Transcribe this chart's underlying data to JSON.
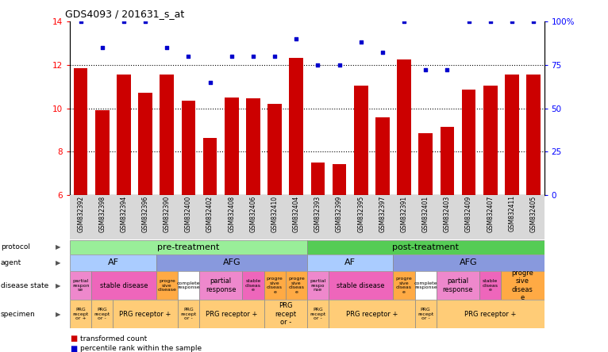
{
  "title": "GDS4093 / 201631_s_at",
  "samples": [
    "GSM832392",
    "GSM832398",
    "GSM832394",
    "GSM832396",
    "GSM832390",
    "GSM832400",
    "GSM832402",
    "GSM832408",
    "GSM832406",
    "GSM832410",
    "GSM832404",
    "GSM832393",
    "GSM832399",
    "GSM832395",
    "GSM832397",
    "GSM832391",
    "GSM832401",
    "GSM832403",
    "GSM832409",
    "GSM832407",
    "GSM832411",
    "GSM832405"
  ],
  "bar_values": [
    11.85,
    9.9,
    11.55,
    10.7,
    11.55,
    10.35,
    8.65,
    10.5,
    10.45,
    10.2,
    12.3,
    7.5,
    7.45,
    11.05,
    9.6,
    12.25,
    8.85,
    9.15,
    10.85,
    11.05,
    11.55,
    11.55
  ],
  "dot_values_pct": [
    100,
    85,
    100,
    100,
    85,
    80,
    65,
    80,
    80,
    80,
    90,
    75,
    75,
    88,
    82,
    100,
    72,
    72,
    100,
    100,
    100,
    100
  ],
  "ylim_left": [
    6,
    14
  ],
  "ylim_right": [
    0,
    100
  ],
  "yticks_left": [
    6,
    8,
    10,
    12,
    14
  ],
  "ytick_labels_right": [
    "0",
    "25",
    "50",
    "75",
    "100%"
  ],
  "yticks_right": [
    0,
    25,
    50,
    75,
    100
  ],
  "grid_yticks": [
    8,
    10,
    12
  ],
  "bar_color": "#cc0000",
  "dot_color": "#0000cc",
  "protocol_row": [
    {
      "label": "pre-treatment",
      "start": 0,
      "end": 11,
      "color": "#99ee99"
    },
    {
      "label": "post-treatment",
      "start": 11,
      "end": 22,
      "color": "#55cc55"
    }
  ],
  "agent_row": [
    {
      "label": "AF",
      "start": 0,
      "end": 4,
      "color": "#aaccff"
    },
    {
      "label": "AFG",
      "start": 4,
      "end": 11,
      "color": "#8899dd"
    },
    {
      "label": "AF",
      "start": 11,
      "end": 15,
      "color": "#aaccff"
    },
    {
      "label": "AFG",
      "start": 15,
      "end": 22,
      "color": "#8899dd"
    }
  ],
  "disease_row": [
    {
      "label": "partial\nrespon\nse",
      "start": 0,
      "end": 1,
      "color": "#ee88cc"
    },
    {
      "label": "stable disease",
      "start": 1,
      "end": 4,
      "color": "#ee66bb"
    },
    {
      "label": "progre\nsive\ndisease",
      "start": 4,
      "end": 5,
      "color": "#ffaa44"
    },
    {
      "label": "complete\nresponse",
      "start": 5,
      "end": 6,
      "color": "#ffffff"
    },
    {
      "label": "partial\nresponse",
      "start": 6,
      "end": 8,
      "color": "#ee88cc"
    },
    {
      "label": "stable\ndiseas\ne",
      "start": 8,
      "end": 9,
      "color": "#ee66bb"
    },
    {
      "label": "progre\nsive\ndiseas\ne",
      "start": 9,
      "end": 10,
      "color": "#ffaa44"
    },
    {
      "label": "progre\nsive\ndiseas\ne",
      "start": 10,
      "end": 11,
      "color": "#ffaa44"
    },
    {
      "label": "partial\nrespo\nnse",
      "start": 11,
      "end": 12,
      "color": "#ee88cc"
    },
    {
      "label": "stable disease",
      "start": 12,
      "end": 15,
      "color": "#ee66bb"
    },
    {
      "label": "progre\nsive\ndiseas\ne",
      "start": 15,
      "end": 16,
      "color": "#ffaa44"
    },
    {
      "label": "complete\nresponse",
      "start": 16,
      "end": 17,
      "color": "#ffffff"
    },
    {
      "label": "partial\nresponse",
      "start": 17,
      "end": 19,
      "color": "#ee88cc"
    },
    {
      "label": "stable\ndiseas\ne",
      "start": 19,
      "end": 20,
      "color": "#ee66bb"
    },
    {
      "label": "progre\nsive\ndiseas\ne",
      "start": 20,
      "end": 22,
      "color": "#ffaa44"
    }
  ],
  "specimen_row": [
    {
      "label": "PRG\nrecept\nor +",
      "start": 0,
      "end": 1,
      "color": "#ffcc77"
    },
    {
      "label": "PRG\nrecept\nor -",
      "start": 1,
      "end": 2,
      "color": "#ffcc77"
    },
    {
      "label": "PRG receptor +",
      "start": 2,
      "end": 5,
      "color": "#ffcc77"
    },
    {
      "label": "PRG\nrecept\nor -",
      "start": 5,
      "end": 6,
      "color": "#ffcc77"
    },
    {
      "label": "PRG receptor +",
      "start": 6,
      "end": 9,
      "color": "#ffcc77"
    },
    {
      "label": "PRG\nrecept\nor -",
      "start": 9,
      "end": 11,
      "color": "#ffcc77"
    },
    {
      "label": "PRG\nrecept\nor -",
      "start": 11,
      "end": 12,
      "color": "#ffcc77"
    },
    {
      "label": "PRG receptor +",
      "start": 12,
      "end": 16,
      "color": "#ffcc77"
    },
    {
      "label": "PRG\nrecept\nor -",
      "start": 16,
      "end": 17,
      "color": "#ffcc77"
    },
    {
      "label": "PRG receptor +",
      "start": 17,
      "end": 22,
      "color": "#ffcc77"
    }
  ]
}
